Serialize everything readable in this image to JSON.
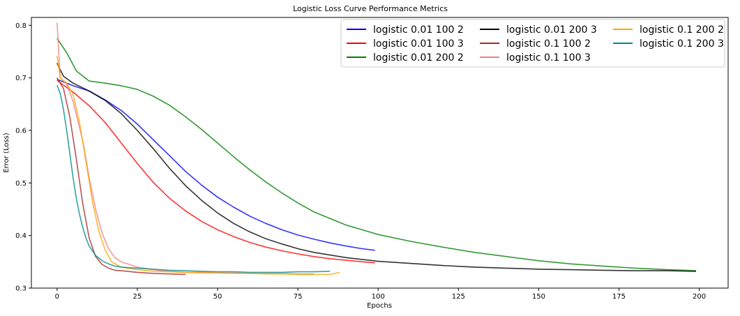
{
  "chart_data": {
    "type": "line",
    "title": "Logistic Loss Curve Performance Metrics",
    "xlabel": "Epochs",
    "ylabel": "Error (Loss)",
    "xlim": [
      -8,
      209
    ],
    "ylim": [
      0.3,
      0.815
    ],
    "xticks": [
      0,
      25,
      50,
      75,
      100,
      125,
      150,
      175,
      200
    ],
    "yticks": [
      0.3,
      0.4,
      0.5,
      0.6,
      0.7,
      0.8
    ],
    "grid": false,
    "legend_position": "top-right",
    "legend_columns": 3,
    "series": [
      {
        "name": "logistic 0.01 100 2",
        "color": "#0000ff",
        "x": [
          0,
          5,
          10,
          15,
          20,
          25,
          30,
          35,
          40,
          45,
          50,
          55,
          60,
          65,
          70,
          75,
          80,
          85,
          90,
          95,
          99
        ],
        "y": [
          0.697,
          0.685,
          0.675,
          0.658,
          0.638,
          0.612,
          0.582,
          0.552,
          0.522,
          0.496,
          0.473,
          0.454,
          0.437,
          0.423,
          0.411,
          0.401,
          0.393,
          0.386,
          0.38,
          0.375,
          0.372
        ]
      },
      {
        "name": "logistic 0.01 100 3",
        "color": "#ff0000",
        "x": [
          0,
          5,
          10,
          15,
          20,
          25,
          30,
          35,
          40,
          45,
          50,
          55,
          60,
          65,
          70,
          75,
          80,
          85,
          90,
          95,
          99
        ],
        "y": [
          0.695,
          0.673,
          0.647,
          0.615,
          0.576,
          0.537,
          0.501,
          0.471,
          0.447,
          0.427,
          0.411,
          0.398,
          0.387,
          0.378,
          0.371,
          0.365,
          0.36,
          0.356,
          0.353,
          0.35,
          0.348
        ]
      },
      {
        "name": "logistic 0.01 200 2",
        "color": "#008000",
        "x": [
          0,
          3,
          6,
          10,
          15,
          20,
          25,
          30,
          35,
          40,
          45,
          50,
          55,
          60,
          65,
          70,
          75,
          80,
          90,
          100,
          110,
          120,
          130,
          140,
          150,
          160,
          170,
          180,
          190,
          199
        ],
        "y": [
          0.775,
          0.748,
          0.713,
          0.694,
          0.69,
          0.685,
          0.678,
          0.665,
          0.648,
          0.626,
          0.602,
          0.576,
          0.55,
          0.525,
          0.502,
          0.481,
          0.462,
          0.445,
          0.42,
          0.402,
          0.389,
          0.378,
          0.368,
          0.36,
          0.352,
          0.346,
          0.342,
          0.338,
          0.335,
          0.333
        ]
      },
      {
        "name": "logistic 0.01 200 3",
        "color": "#000000",
        "x": [
          0,
          2,
          5,
          10,
          15,
          20,
          25,
          30,
          35,
          40,
          45,
          50,
          55,
          60,
          65,
          70,
          75,
          80,
          90,
          100,
          110,
          120,
          130,
          140,
          150,
          160,
          170,
          180,
          190,
          199
        ],
        "y": [
          0.728,
          0.703,
          0.69,
          0.675,
          0.657,
          0.632,
          0.6,
          0.565,
          0.528,
          0.495,
          0.467,
          0.443,
          0.423,
          0.407,
          0.394,
          0.384,
          0.375,
          0.368,
          0.358,
          0.351,
          0.347,
          0.343,
          0.34,
          0.338,
          0.336,
          0.335,
          0.334,
          0.333,
          0.333,
          0.332
        ]
      },
      {
        "name": "logistic 0.1 100 2",
        "color": "#a52a2a",
        "x": [
          0,
          2,
          4,
          6,
          8,
          10,
          12,
          14,
          16,
          18,
          20,
          25,
          30,
          35,
          40
        ],
        "y": [
          0.7,
          0.68,
          0.625,
          0.545,
          0.46,
          0.395,
          0.36,
          0.345,
          0.338,
          0.334,
          0.333,
          0.33,
          0.328,
          0.327,
          0.326
        ]
      },
      {
        "name": "logistic 0.1 100 3",
        "color": "#f08080",
        "x": [
          0,
          1,
          3,
          5,
          8,
          10,
          12,
          14,
          16,
          18,
          20,
          25,
          30,
          35,
          40,
          45,
          50,
          55,
          60,
          65,
          70,
          75,
          80
        ],
        "y": [
          0.805,
          0.7,
          0.688,
          0.655,
          0.58,
          0.51,
          0.45,
          0.405,
          0.375,
          0.358,
          0.35,
          0.34,
          0.335,
          0.332,
          0.33,
          0.33,
          0.329,
          0.329,
          0.328,
          0.328,
          0.328,
          0.327,
          0.327
        ]
      },
      {
        "name": "logistic 0.1 200 2",
        "color": "#ffa500",
        "x": [
          0,
          1,
          3,
          5,
          7,
          9,
          11,
          13,
          15,
          17,
          20,
          25,
          30,
          35,
          40,
          45,
          50,
          55,
          60,
          65,
          70,
          75,
          80,
          85,
          88
        ],
        "y": [
          0.742,
          0.7,
          0.69,
          0.668,
          0.615,
          0.54,
          0.465,
          0.408,
          0.372,
          0.35,
          0.34,
          0.335,
          0.332,
          0.331,
          0.33,
          0.329,
          0.329,
          0.328,
          0.328,
          0.327,
          0.327,
          0.326,
          0.326,
          0.326,
          0.33
        ]
      },
      {
        "name": "logistic 0.1 200 3",
        "color": "#008b8b",
        "x": [
          0,
          1,
          2,
          3,
          4,
          5,
          6,
          7,
          8,
          9,
          10,
          12,
          14,
          16,
          18,
          20,
          25,
          30,
          35,
          40,
          45,
          50,
          55,
          60,
          65,
          70,
          75,
          80,
          85
        ],
        "y": [
          0.686,
          0.67,
          0.64,
          0.6,
          0.555,
          0.51,
          0.47,
          0.44,
          0.415,
          0.395,
          0.38,
          0.362,
          0.352,
          0.346,
          0.342,
          0.34,
          0.338,
          0.336,
          0.334,
          0.333,
          0.332,
          0.331,
          0.331,
          0.33,
          0.33,
          0.33,
          0.331,
          0.331,
          0.332
        ]
      }
    ]
  }
}
